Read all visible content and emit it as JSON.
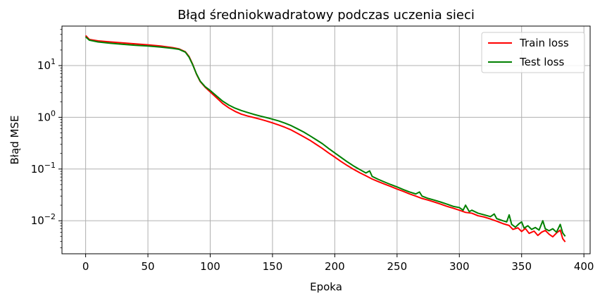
{
  "chart_data": {
    "type": "line",
    "title": "Błąd średniokwadratowy podczas uczenia sieci",
    "xlabel": "Epoka",
    "ylabel": "Błąd MSE",
    "y_scale": "log",
    "xlim": [
      -19,
      405
    ],
    "ylim": [
      0.0023,
      58
    ],
    "grid": true,
    "legend_placement": "top-right",
    "x_ticks": [
      0,
      50,
      100,
      150,
      200,
      250,
      300,
      350,
      400
    ],
    "y_ticks": [
      {
        "value": 0.01,
        "base": "10",
        "exp": "−2"
      },
      {
        "value": 0.1,
        "base": "10",
        "exp": "−1"
      },
      {
        "value": 1,
        "base": "10",
        "exp": "0"
      },
      {
        "value": 10,
        "base": "10",
        "exp": "1"
      }
    ],
    "series": [
      {
        "name": "Train loss",
        "color": "#ff0000",
        "points": [
          [
            0,
            38
          ],
          [
            3,
            32
          ],
          [
            10,
            30
          ],
          [
            20,
            28.6
          ],
          [
            30,
            27.4
          ],
          [
            40,
            26.3
          ],
          [
            50,
            25.2
          ],
          [
            60,
            23.9
          ],
          [
            70,
            22.2
          ],
          [
            75,
            21.0
          ],
          [
            80,
            18.5
          ],
          [
            83,
            15.0
          ],
          [
            86,
            10.5
          ],
          [
            89,
            6.8
          ],
          [
            92,
            4.9
          ],
          [
            96,
            3.8
          ],
          [
            100,
            3.1
          ],
          [
            105,
            2.4
          ],
          [
            110,
            1.85
          ],
          [
            115,
            1.52
          ],
          [
            120,
            1.3
          ],
          [
            125,
            1.15
          ],
          [
            130,
            1.06
          ],
          [
            135,
            0.99
          ],
          [
            140,
            0.92
          ],
          [
            145,
            0.85
          ],
          [
            150,
            0.78
          ],
          [
            155,
            0.71
          ],
          [
            160,
            0.64
          ],
          [
            165,
            0.57
          ],
          [
            170,
            0.49
          ],
          [
            175,
            0.42
          ],
          [
            180,
            0.36
          ],
          [
            185,
            0.3
          ],
          [
            190,
            0.25
          ],
          [
            195,
            0.205
          ],
          [
            200,
            0.17
          ],
          [
            205,
            0.14
          ],
          [
            210,
            0.117
          ],
          [
            215,
            0.099
          ],
          [
            220,
            0.085
          ],
          [
            225,
            0.074
          ],
          [
            230,
            0.064
          ],
          [
            235,
            0.057
          ],
          [
            240,
            0.051
          ],
          [
            245,
            0.046
          ],
          [
            250,
            0.041
          ],
          [
            255,
            0.037
          ],
          [
            260,
            0.033
          ],
          [
            265,
            0.03
          ],
          [
            270,
            0.027
          ],
          [
            275,
            0.025
          ],
          [
            280,
            0.023
          ],
          [
            285,
            0.021
          ],
          [
            290,
            0.019
          ],
          [
            295,
            0.0175
          ],
          [
            300,
            0.016
          ],
          [
            305,
            0.0145
          ],
          [
            310,
            0.014
          ],
          [
            315,
            0.0125
          ],
          [
            320,
            0.0118
          ],
          [
            325,
            0.0108
          ],
          [
            330,
            0.0098
          ],
          [
            335,
            0.0088
          ],
          [
            340,
            0.0081
          ],
          [
            343,
            0.0068
          ],
          [
            347,
            0.0073
          ],
          [
            350,
            0.0062
          ],
          [
            353,
            0.0071
          ],
          [
            356,
            0.0057
          ],
          [
            360,
            0.0063
          ],
          [
            363,
            0.0052
          ],
          [
            366,
            0.006
          ],
          [
            369,
            0.0065
          ],
          [
            372,
            0.0055
          ],
          [
            375,
            0.0049
          ],
          [
            378,
            0.0058
          ],
          [
            381,
            0.0066
          ],
          [
            383,
            0.0045
          ],
          [
            385,
            0.0039
          ]
        ]
      },
      {
        "name": "Test loss",
        "color": "#008000",
        "points": [
          [
            0,
            36
          ],
          [
            3,
            31
          ],
          [
            10,
            28.6
          ],
          [
            20,
            27.0
          ],
          [
            30,
            25.8
          ],
          [
            40,
            24.7
          ],
          [
            50,
            23.9
          ],
          [
            60,
            22.8
          ],
          [
            70,
            21.5
          ],
          [
            75,
            20.6
          ],
          [
            80,
            18.2
          ],
          [
            83,
            14.6
          ],
          [
            86,
            10.3
          ],
          [
            89,
            6.9
          ],
          [
            92,
            5.0
          ],
          [
            96,
            3.9
          ],
          [
            100,
            3.3
          ],
          [
            105,
            2.6
          ],
          [
            110,
            2.05
          ],
          [
            115,
            1.72
          ],
          [
            120,
            1.5
          ],
          [
            125,
            1.35
          ],
          [
            130,
            1.24
          ],
          [
            135,
            1.14
          ],
          [
            140,
            1.06
          ],
          [
            145,
            0.99
          ],
          [
            150,
            0.92
          ],
          [
            155,
            0.85
          ],
          [
            160,
            0.77
          ],
          [
            165,
            0.69
          ],
          [
            170,
            0.6
          ],
          [
            175,
            0.52
          ],
          [
            180,
            0.44
          ],
          [
            185,
            0.37
          ],
          [
            190,
            0.31
          ],
          [
            195,
            0.25
          ],
          [
            200,
            0.205
          ],
          [
            205,
            0.168
          ],
          [
            210,
            0.138
          ],
          [
            215,
            0.115
          ],
          [
            220,
            0.098
          ],
          [
            225,
            0.084
          ],
          [
            228,
            0.092
          ],
          [
            230,
            0.072
          ],
          [
            235,
            0.063
          ],
          [
            240,
            0.056
          ],
          [
            245,
            0.05
          ],
          [
            250,
            0.045
          ],
          [
            255,
            0.04
          ],
          [
            260,
            0.036
          ],
          [
            265,
            0.033
          ],
          [
            268,
            0.036
          ],
          [
            270,
            0.03
          ],
          [
            275,
            0.027
          ],
          [
            280,
            0.025
          ],
          [
            285,
            0.023
          ],
          [
            290,
            0.021
          ],
          [
            295,
            0.019
          ],
          [
            300,
            0.018
          ],
          [
            303,
            0.016
          ],
          [
            305,
            0.02
          ],
          [
            308,
            0.015
          ],
          [
            310,
            0.016
          ],
          [
            315,
            0.014
          ],
          [
            320,
            0.013
          ],
          [
            325,
            0.012
          ],
          [
            328,
            0.0135
          ],
          [
            330,
            0.011
          ],
          [
            335,
            0.01
          ],
          [
            338,
            0.0095
          ],
          [
            340,
            0.013
          ],
          [
            342,
            0.0085
          ],
          [
            345,
            0.0075
          ],
          [
            348,
            0.0088
          ],
          [
            350,
            0.0095
          ],
          [
            352,
            0.0072
          ],
          [
            355,
            0.008
          ],
          [
            358,
            0.0068
          ],
          [
            361,
            0.0074
          ],
          [
            364,
            0.0066
          ],
          [
            367,
            0.01
          ],
          [
            369,
            0.007
          ],
          [
            372,
            0.0064
          ],
          [
            375,
            0.007
          ],
          [
            378,
            0.006
          ],
          [
            381,
            0.0085
          ],
          [
            383,
            0.0058
          ],
          [
            385,
            0.005
          ]
        ]
      }
    ]
  }
}
